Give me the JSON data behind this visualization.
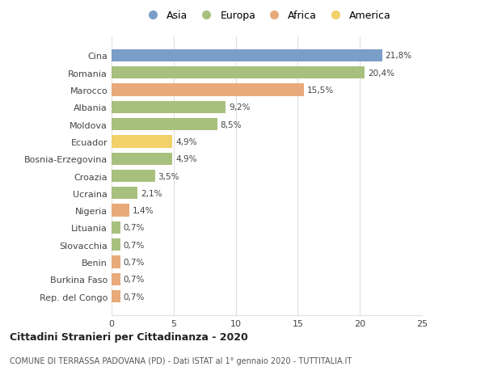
{
  "countries": [
    "Cina",
    "Romania",
    "Marocco",
    "Albania",
    "Moldova",
    "Ecuador",
    "Bosnia-Erzegovina",
    "Croazia",
    "Ucraina",
    "Nigeria",
    "Lituania",
    "Slovacchia",
    "Benin",
    "Burkina Faso",
    "Rep. del Congo"
  ],
  "values": [
    21.8,
    20.4,
    15.5,
    9.2,
    8.5,
    4.9,
    4.9,
    3.5,
    2.1,
    1.4,
    0.7,
    0.7,
    0.7,
    0.7,
    0.7
  ],
  "labels": [
    "21,8%",
    "20,4%",
    "15,5%",
    "9,2%",
    "8,5%",
    "4,9%",
    "4,9%",
    "3,5%",
    "2,1%",
    "1,4%",
    "0,7%",
    "0,7%",
    "0,7%",
    "0,7%",
    "0,7%"
  ],
  "continents": [
    "Asia",
    "Europa",
    "Africa",
    "Europa",
    "Europa",
    "America",
    "Europa",
    "Europa",
    "Europa",
    "Africa",
    "Europa",
    "Europa",
    "Africa",
    "Africa",
    "Africa"
  ],
  "colors": {
    "Asia": "#7b9ec9",
    "Europa": "#a8c07e",
    "Africa": "#e8aa7a",
    "America": "#f2d06a"
  },
  "legend_order": [
    "Asia",
    "Europa",
    "Africa",
    "America"
  ],
  "title": "Cittadini Stranieri per Cittadinanza - 2020",
  "subtitle": "COMUNE DI TERRASSA PADOVANA (PD) - Dati ISTAT al 1° gennaio 2020 - TUTTITALIA.IT",
  "xlim": [
    0,
    25
  ],
  "xticks": [
    0,
    5,
    10,
    15,
    20,
    25
  ],
  "bg_color": "#ffffff",
  "grid_color": "#e0e0e0",
  "bar_height": 0.72
}
